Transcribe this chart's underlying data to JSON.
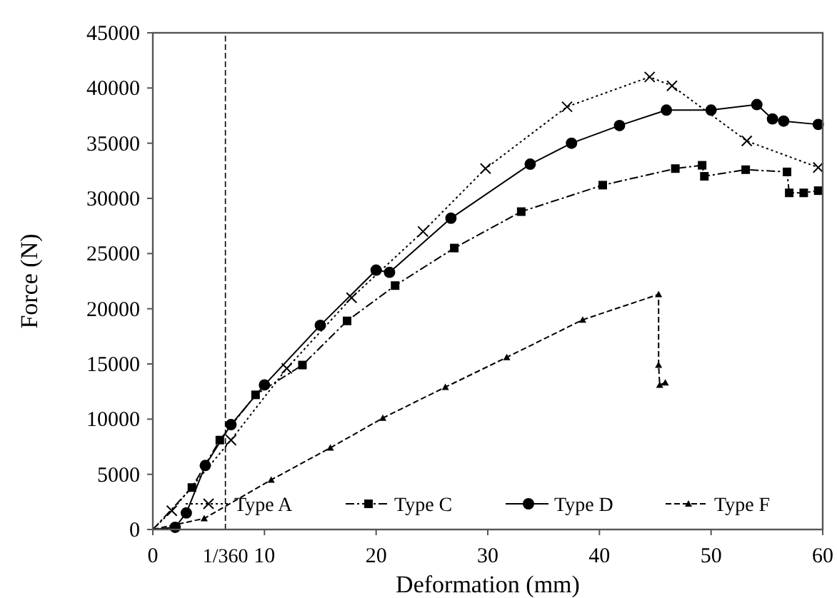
{
  "chart_data": {
    "type": "line",
    "xlabel": "Deformation (mm)",
    "ylabel": "Force (N)",
    "xlim": [
      0,
      60
    ],
    "xticks": [
      0,
      10,
      20,
      30,
      40,
      50,
      60
    ],
    "ylim": [
      0,
      45000
    ],
    "yticks": [
      0,
      5000,
      10000,
      15000,
      20000,
      25000,
      30000,
      35000,
      40000,
      45000
    ],
    "grid": false,
    "legend": "bottom",
    "ref_lines": [
      {
        "axis": "x",
        "value": 6.5,
        "line_style": "dashed",
        "color": "#000000"
      }
    ],
    "annotations": [
      "1/360"
    ],
    "series": [
      {
        "name": "Type A",
        "color": "#000000",
        "marker": "cross",
        "line_style": "dotted",
        "x": [
          0,
          1.7,
          7.0,
          12.0,
          17.8,
          24.2,
          29.8,
          37.1,
          44.5,
          46.5,
          53.2,
          59.6
        ],
        "values": [
          0,
          1700,
          8100,
          14600,
          21000,
          27000,
          32700,
          38300,
          41000,
          40200,
          35200,
          32800
        ]
      },
      {
        "name": "Type C",
        "color": "#000000",
        "marker": "square",
        "line_style": "dashed",
        "x": [
          0,
          3.5,
          6.0,
          9.2,
          13.4,
          17.4,
          21.7,
          27.0,
          33.0,
          40.3,
          46.8,
          49.2,
          49.4,
          53.1,
          56.8,
          57.0,
          58.3,
          59.6
        ],
        "values": [
          0,
          3800,
          8100,
          12200,
          14900,
          18900,
          22100,
          25500,
          28800,
          31200,
          32700,
          33000,
          32000,
          32600,
          32400,
          30500,
          30500,
          30700
        ]
      },
      {
        "name": "Type D",
        "color": "#000000",
        "marker": "circle",
        "line_style": "solid",
        "x": [
          0,
          2,
          3,
          4.7,
          7,
          10.0,
          15.0,
          20,
          21.2,
          26.7,
          33.8,
          37.5,
          41.8,
          46.0,
          50.0,
          54.1,
          55.5,
          56.5,
          59.6
        ],
        "values": [
          0,
          200,
          1500,
          5800,
          9500,
          13100,
          18500,
          23500,
          23300,
          28200,
          33100,
          35000,
          36600,
          38000,
          38000,
          38500,
          37200,
          37000,
          36700
        ]
      },
      {
        "name": "Type F",
        "color": "#000000",
        "marker": "triangle",
        "line_style": "dashed",
        "x": [
          0,
          4.6,
          10.6,
          15.9,
          20.6,
          26.2,
          31.7,
          38.5,
          45.3,
          45.3,
          45.4,
          45.9
        ],
        "values": [
          0,
          1000,
          4500,
          7400,
          10100,
          12900,
          15600,
          19000,
          21300,
          14900,
          13100,
          13300
        ]
      }
    ]
  }
}
